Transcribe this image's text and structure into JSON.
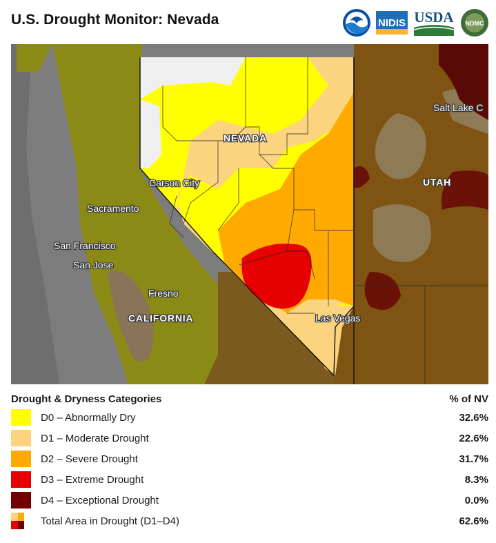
{
  "header": {
    "title": "U.S. Drought Monitor: Nevada",
    "logos": [
      "NOAA",
      "NIDIS",
      "USDA",
      "NDMC"
    ]
  },
  "map": {
    "labels": {
      "state_nevada": "NEVADA",
      "state_utah": "UTAH",
      "state_california": "CALIFORNIA",
      "city_carson": "Carson City",
      "city_sacramento": "Sacramento",
      "city_sf": "San Francisco",
      "city_sanjose": "San Jose",
      "city_fresno": "Fresno",
      "city_lasvegas": "Las Vegas",
      "city_slc": "Salt Lake C"
    }
  },
  "legend": {
    "title": "Drought & Dryness Categories",
    "column_header": "% of NV",
    "categories": [
      {
        "label": "D0 – Abnormally Dry",
        "percent": "32.6%",
        "color": "#ffff00"
      },
      {
        "label": "D1 – Moderate Drought",
        "percent": "22.6%",
        "color": "#fcd37f"
      },
      {
        "label": "D2 – Severe Drought",
        "percent": "31.7%",
        "color": "#ffaa00"
      },
      {
        "label": "D3 – Extreme Drought",
        "percent": "8.3%",
        "color": "#e60000"
      },
      {
        "label": "D4 – Exceptional Drought",
        "percent": "0.0%",
        "color": "#730000"
      }
    ],
    "total": {
      "label": "Total Area in Drought (D1–D4)",
      "percent": "62.6%"
    }
  }
}
